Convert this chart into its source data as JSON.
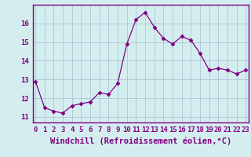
{
  "x": [
    0,
    1,
    2,
    3,
    4,
    5,
    6,
    7,
    8,
    9,
    10,
    11,
    12,
    13,
    14,
    15,
    16,
    17,
    18,
    19,
    20,
    21,
    22,
    23
  ],
  "y": [
    12.9,
    11.5,
    11.3,
    11.2,
    11.6,
    11.7,
    11.8,
    12.3,
    12.2,
    12.8,
    14.9,
    16.2,
    16.6,
    15.8,
    15.2,
    14.9,
    15.3,
    15.1,
    14.4,
    13.5,
    13.6,
    13.5,
    13.3,
    13.5
  ],
  "line_color": "#800080",
  "marker": "D",
  "marker_size": 2.5,
  "bg_color": "#d4eef0",
  "grid_color": "#aabbd0",
  "xlabel": "Windchill (Refroidissement éolien,°C)",
  "xlabel_color": "#800080",
  "xlabel_fontsize": 7.5,
  "xtick_labels": [
    "0",
    "1",
    "2",
    "3",
    "4",
    "5",
    "6",
    "7",
    "8",
    "9",
    "10",
    "11",
    "12",
    "13",
    "14",
    "15",
    "16",
    "17",
    "18",
    "19",
    "20",
    "21",
    "22",
    "23"
  ],
  "ytick_values": [
    11,
    12,
    13,
    14,
    15,
    16
  ],
  "ylim": [
    10.7,
    17.0
  ],
  "xlim": [
    -0.3,
    23.3
  ],
  "tick_color": "#800080",
  "tick_fontsize": 6.5,
  "spine_color": "#800080",
  "label_bottom_color": "#800080"
}
